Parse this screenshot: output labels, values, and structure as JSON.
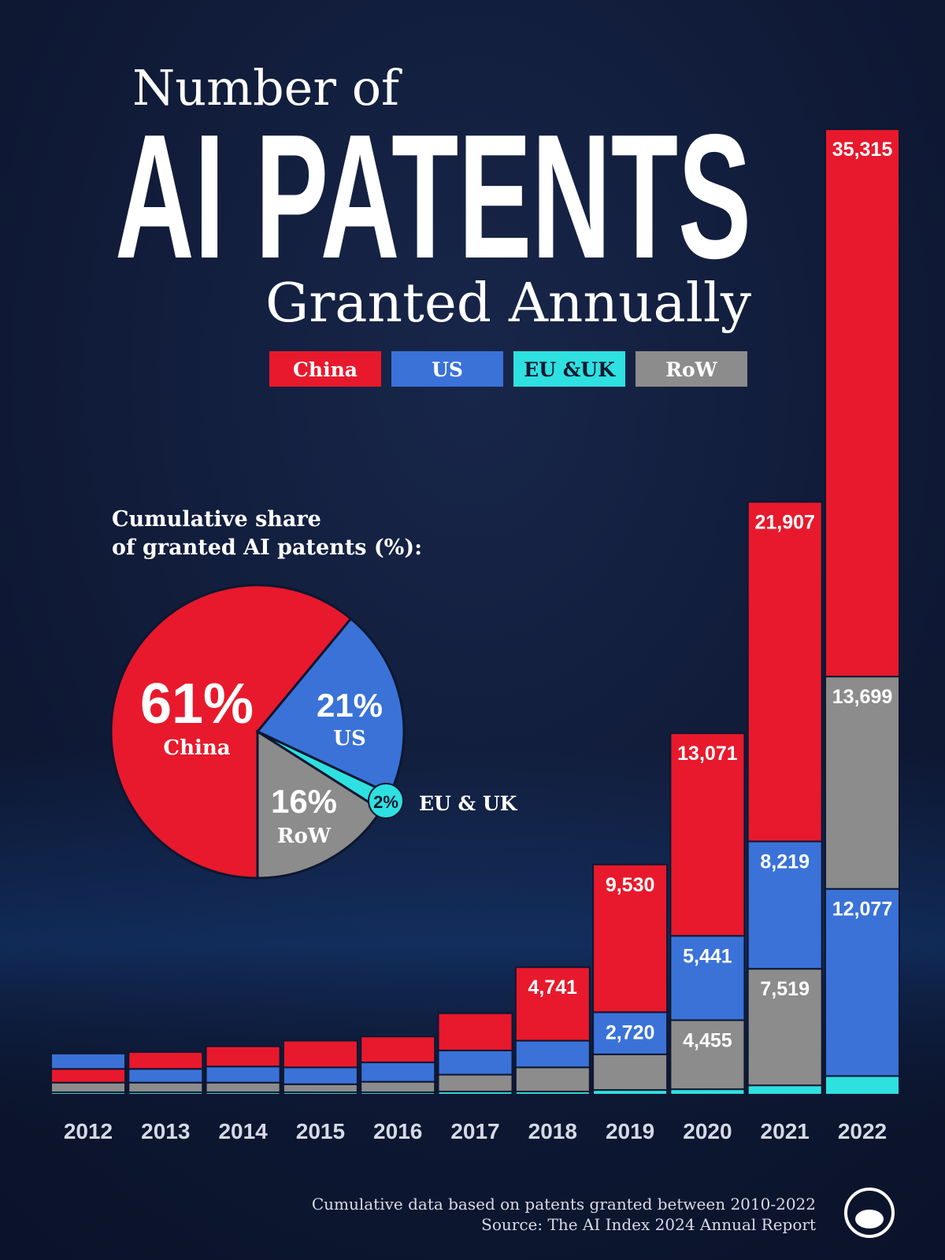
{
  "chart_data": [
    {
      "type": "bar",
      "stacked": true,
      "title": [
        "Number of",
        "AI PATENTS",
        "Granted Annually"
      ],
      "categories": [
        "2012",
        "2013",
        "2014",
        "2015",
        "2016",
        "2017",
        "2018",
        "2019",
        "2020",
        "2021",
        "2022"
      ],
      "series": [
        {
          "name": "China",
          "color": "#e8192c",
          "values": [
            885,
            1090,
            1300,
            1720,
            1670,
            2400,
            4741,
            9530,
            13071,
            21907,
            35315
          ],
          "value_labels": [
            null,
            null,
            null,
            null,
            null,
            null,
            "4,741",
            "9,530",
            "13,071",
            "21,907",
            "35,315"
          ]
        },
        {
          "name": "US",
          "color": "#3a72d8",
          "values": [
            990,
            885,
            1040,
            1090,
            1250,
            1560,
            1720,
            2720,
            5441,
            8219,
            12077
          ],
          "value_labels": [
            null,
            null,
            null,
            null,
            null,
            null,
            null,
            "2,720",
            "5,441",
            "8,219",
            "12,077"
          ]
        },
        {
          "name": "EU &UK",
          "color": "#2fe0e0",
          "values": [
            150,
            150,
            150,
            150,
            150,
            200,
            200,
            300,
            350,
            600,
            1200
          ]
        },
        {
          "name": "RoW",
          "color": "#8c8c8c",
          "values": [
            625,
            625,
            625,
            520,
            680,
            1090,
            1560,
            2300,
            4455,
            7519,
            13699
          ],
          "value_labels": [
            null,
            null,
            null,
            null,
            null,
            null,
            null,
            null,
            "4,455",
            "7,519",
            "13,699"
          ]
        }
      ],
      "ylim": [
        0,
        62500
      ],
      "note": "Cumulative data based on patents granted between 2010-2022",
      "source": "Source: The AI Index 2024 Annual Report"
    },
    {
      "type": "pie",
      "title": [
        "Cumulative share",
        "of granted AI patents (%):"
      ],
      "categories": [
        "China",
        "US",
        "EU & UK",
        "RoW"
      ],
      "values": [
        61,
        21,
        2,
        16
      ],
      "value_labels": [
        "61%",
        "21%",
        "2%",
        "16%"
      ],
      "colors": [
        "#e8192c",
        "#3a72d8",
        "#2fe0e0",
        "#8c8c8c"
      ]
    }
  ]
}
